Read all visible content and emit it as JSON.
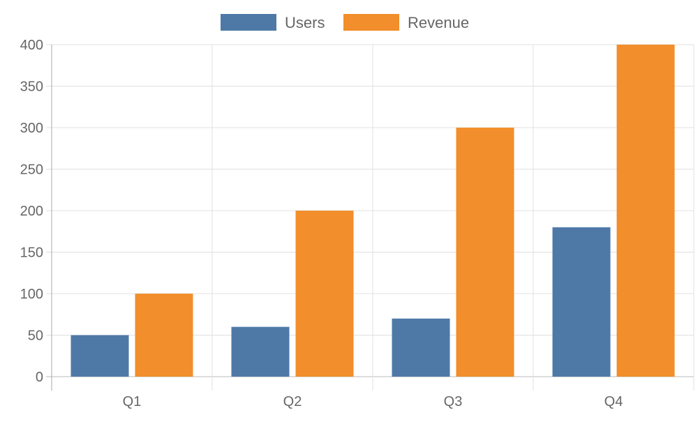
{
  "chart_data": {
    "type": "bar",
    "categories": [
      "Q1",
      "Q2",
      "Q3",
      "Q4"
    ],
    "series": [
      {
        "name": "Users",
        "values": [
          50,
          60,
          70,
          180
        ],
        "color": "#4e79a7"
      },
      {
        "name": "Revenue",
        "values": [
          100,
          200,
          300,
          400
        ],
        "color": "#f28e2b"
      }
    ],
    "title": "",
    "xlabel": "",
    "ylabel": "",
    "ylim": [
      0,
      400
    ],
    "yticks": [
      0,
      50,
      100,
      150,
      200,
      250,
      300,
      350,
      400
    ],
    "grid": true,
    "legend": "top"
  }
}
